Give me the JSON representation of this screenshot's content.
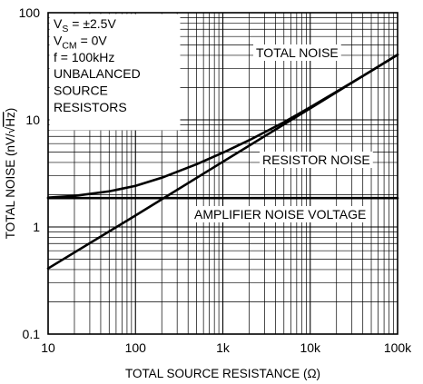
{
  "chart_data": {
    "type": "line",
    "xlabel": "TOTAL SOURCE RESISTANCE (Ω)",
    "ylabel": "TOTAL NOISE (nV/√Hz)",
    "xscale": "log",
    "yscale": "log",
    "xlim": [
      10,
      100000
    ],
    "ylim": [
      0.1,
      100
    ],
    "grid": true,
    "x_ticks": [
      {
        "value": 10,
        "label": "10"
      },
      {
        "value": 100,
        "label": "100"
      },
      {
        "value": 1000,
        "label": "1k"
      },
      {
        "value": 10000,
        "label": "10k"
      },
      {
        "value": 100000,
        "label": "100k"
      }
    ],
    "y_ticks": [
      {
        "value": 0.1,
        "label": "0.1"
      },
      {
        "value": 1,
        "label": "1"
      },
      {
        "value": 10,
        "label": "10"
      },
      {
        "value": 100,
        "label": "100"
      }
    ],
    "conditions": [
      "V_S = ±2.5V",
      "V_CM = 0V",
      "f = 100kHz",
      "UNBALANCED",
      "SOURCE",
      "RESISTORS"
    ],
    "series": [
      {
        "name": "TOTAL NOISE",
        "x": [
          10,
          20,
          50,
          100,
          200,
          500,
          1000,
          2000,
          5000,
          10000,
          20000,
          50000,
          100000
        ],
        "y": [
          1.88,
          1.95,
          2.15,
          2.42,
          2.88,
          3.85,
          4.93,
          6.45,
          9.5,
          13.1,
          18.3,
          28.6,
          40.4
        ]
      },
      {
        "name": "RESISTOR NOISE",
        "x": [
          10,
          100,
          1000,
          10000,
          100000
        ],
        "y": [
          0.41,
          1.28,
          4.06,
          12.8,
          40.6
        ]
      },
      {
        "name": "AMPLIFIER NOISE VOLTAGE",
        "x": [
          10,
          100000
        ],
        "y": [
          1.86,
          1.86
        ]
      }
    ]
  }
}
